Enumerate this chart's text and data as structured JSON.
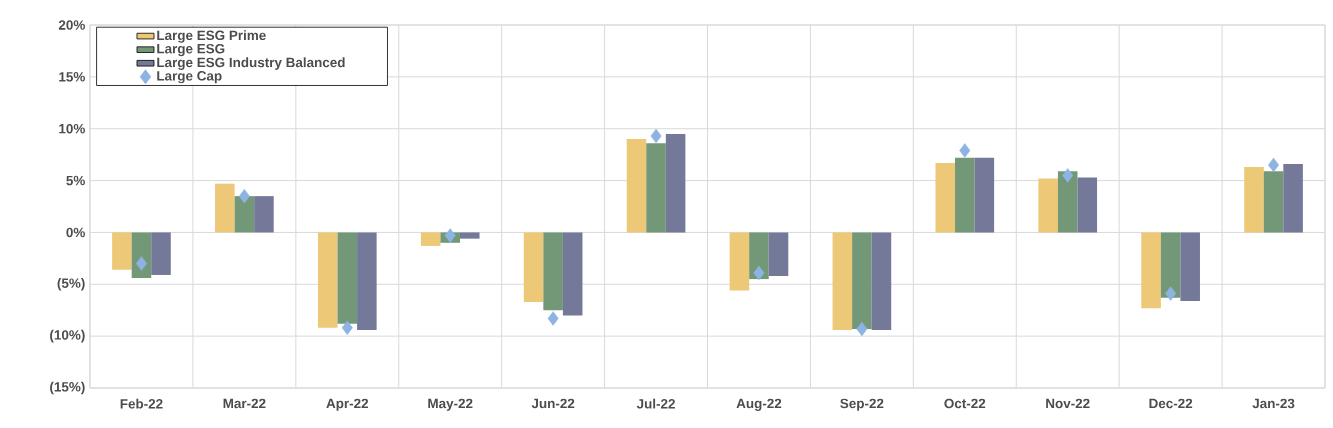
{
  "chart_data": {
    "type": "bar",
    "categories": [
      "Feb-22",
      "Mar-22",
      "Apr-22",
      "May-22",
      "Jun-22",
      "Jul-22",
      "Aug-22",
      "Sep-22",
      "Oct-22",
      "Nov-22",
      "Dec-22",
      "Jan-23"
    ],
    "series": [
      {
        "name": "Large ESG Prime",
        "color": "#ecc877",
        "values": [
          -3.6,
          4.7,
          -9.2,
          -1.3,
          -6.7,
          9.0,
          -5.6,
          -9.4,
          6.7,
          5.2,
          -7.3,
          6.3
        ]
      },
      {
        "name": "Large ESG",
        "color": "#739878",
        "values": [
          -4.4,
          3.5,
          -8.8,
          -1.0,
          -7.5,
          8.6,
          -4.5,
          -9.3,
          7.2,
          5.9,
          -6.3,
          5.9
        ]
      },
      {
        "name": "Large ESG Industry Balanced",
        "color": "#747999",
        "values": [
          -4.1,
          3.5,
          -9.4,
          -0.6,
          -8.0,
          9.5,
          -4.2,
          -9.4,
          7.2,
          5.3,
          -6.6,
          6.6
        ]
      },
      {
        "name": "Large Cap",
        "type": "scatter",
        "marker": "diamond",
        "color": "#8db3e2",
        "values": [
          -3.0,
          3.5,
          -9.2,
          -0.3,
          -8.3,
          9.3,
          -3.9,
          -9.3,
          7.9,
          5.5,
          -5.9,
          6.5
        ]
      }
    ],
    "ylim": [
      -15,
      20
    ],
    "yticks": [
      {
        "value": -15,
        "label": "(15%)"
      },
      {
        "value": -10,
        "label": "(10%)"
      },
      {
        "value": -5,
        "label": "(5%)"
      },
      {
        "value": 0,
        "label": "0%"
      },
      {
        "value": 5,
        "label": "5%"
      },
      {
        "value": 10,
        "label": "10%"
      },
      {
        "value": 15,
        "label": "15%"
      },
      {
        "value": 20,
        "label": "20%"
      }
    ],
    "grid": true,
    "legend": "top left"
  }
}
